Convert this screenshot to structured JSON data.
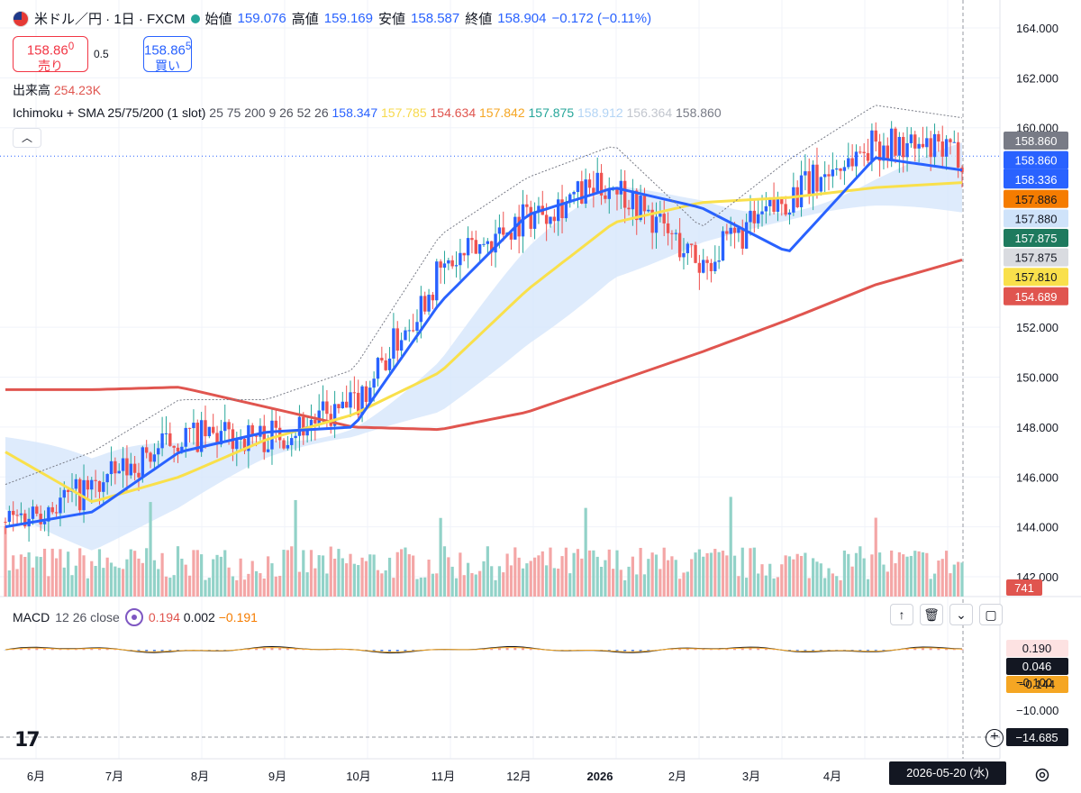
{
  "legend": {
    "symbol": "米ドル／円 · 1日 · FXCM",
    "open_label": "始値",
    "open": "159.076",
    "high_label": "高値",
    "high": "159.169",
    "low_label": "安値",
    "low": "158.587",
    "close_label": "終値",
    "close": "158.904",
    "change": "−0.172 (−0.11%)"
  },
  "trade": {
    "sell_price": "158.86",
    "sell_sup": "0",
    "sell_label": "売り",
    "spread": "0.5",
    "buy_price": "158.86",
    "buy_sup": "5",
    "buy_label": "買い"
  },
  "volume": {
    "label": "出来高",
    "value": "254.23K"
  },
  "ichimoku": {
    "title": "Ichimoku + SMA 25/75/200 (1 slot)",
    "params": "25 75 200 9 26 52 26",
    "values": [
      {
        "v": "158.347",
        "color": "#2962ff"
      },
      {
        "v": "157.785",
        "color": "#f7d94c"
      },
      {
        "v": "154.634",
        "color": "#e0554f"
      },
      {
        "v": "157.842",
        "color": "#f5a623"
      },
      {
        "v": "157.875",
        "color": "#26a69a"
      },
      {
        "v": "158.912",
        "color": "#b3d4f5"
      },
      {
        "v": "156.364",
        "color": "#c2c6ce"
      },
      {
        "v": "158.860",
        "color": "#787b86"
      }
    ]
  },
  "price_axis": {
    "ticks": [
      {
        "label": "164.000",
        "v": 164
      },
      {
        "label": "162.000",
        "v": 162
      },
      {
        "label": "160.000",
        "v": 160
      },
      {
        "label": "152.000",
        "v": 152
      },
      {
        "label": "150.000",
        "v": 150
      },
      {
        "label": "148.000",
        "v": 148
      },
      {
        "label": "146.000",
        "v": 146
      },
      {
        "label": "144.000",
        "v": 144
      },
      {
        "label": "142.000",
        "v": 142
      }
    ],
    "tags": [
      {
        "text": "158.860",
        "bg": "#787b86",
        "fg": "#ffffff",
        "v": 158.86
      },
      {
        "text": "158.860",
        "bg": "#2962ff",
        "fg": "#ffffff",
        "v": 158.86,
        "sub": "22:55:15"
      },
      {
        "text": "158.336",
        "bg": "#2962ff",
        "fg": "#ffffff",
        "v": 158.336
      },
      {
        "text": "157.886",
        "bg": "#f57c00",
        "fg": "#131722",
        "v": 157.886
      },
      {
        "text": "157.880",
        "bg": "#cfe3fa",
        "fg": "#131722",
        "v": 157.88
      },
      {
        "text": "157.875",
        "bg": "#1e7a5e",
        "fg": "#ffffff",
        "v": 157.875
      },
      {
        "text": "157.875",
        "bg": "#d9dbe0",
        "fg": "#131722",
        "v": 157.875
      },
      {
        "text": "157.810",
        "bg": "#f9e04b",
        "fg": "#131722",
        "v": 157.81
      },
      {
        "text": "154.689",
        "bg": "#e0554f",
        "fg": "#ffffff",
        "v": 154.689
      }
    ],
    "volume_tag": "741"
  },
  "macd": {
    "title": "MACD",
    "params": "12 26 close",
    "values": [
      {
        "v": "0.194",
        "color": "#e0554f"
      },
      {
        "v": "0.002",
        "color": "#131722"
      },
      {
        "v": "−0.191",
        "color": "#f57c00"
      }
    ],
    "tags": [
      {
        "text": "0.190",
        "bg": "#fde2e2",
        "fg": "#131722"
      },
      {
        "text": "0.046",
        "bg": "#131722",
        "fg": "#ffffff"
      },
      {
        "text": "−0.144",
        "bg": "#f5a623",
        "fg": "#131722"
      }
    ],
    "axis": [
      "−0.100",
      "−10.000"
    ],
    "cursor_value": "−14.685"
  },
  "time_axis": [
    "6月",
    "7月",
    "8月",
    "9月",
    "10月",
    "11月",
    "12月",
    "2026",
    "2月",
    "3月",
    "4月"
  ],
  "date_chip": "2026-05-20 (水)",
  "chart_data": {
    "type": "candlestick",
    "symbol": "USD/JPY",
    "interval": "1日",
    "ylim": [
      141.5,
      165
    ],
    "ohlc_months": [
      "6月",
      "7月",
      "8月",
      "9月",
      "10月",
      "11月",
      "12月",
      "2026",
      "2月",
      "3月",
      "4月",
      "5月"
    ],
    "monthly_path": [
      144.2,
      145.5,
      147.6,
      147.6,
      148.8,
      154.2,
      156.5,
      157.8,
      154.5,
      157.2,
      159.4,
      158.9
    ],
    "sma25": [
      144.0,
      144.6,
      147.0,
      147.8,
      148.0,
      153.0,
      156.5,
      157.6,
      156.8,
      155.0,
      158.8,
      158.3
    ],
    "sma75": [
      147.0,
      145.0,
      146.0,
      147.5,
      148.5,
      150.2,
      153.5,
      156.2,
      157.0,
      157.2,
      157.6,
      157.8
    ],
    "sma200": [
      149.5,
      149.5,
      149.6,
      148.8,
      148.0,
      147.9,
      148.6,
      149.8,
      151.0,
      152.3,
      153.7,
      154.7
    ],
    "grid": true
  }
}
